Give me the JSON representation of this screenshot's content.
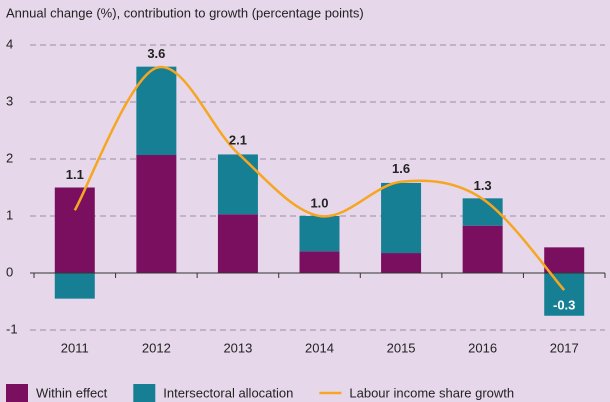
{
  "chart_data": {
    "type": "bar",
    "title": "Annual change (%), contribution to growth (percentage points)",
    "categories": [
      "2011",
      "2012",
      "2013",
      "2014",
      "2015",
      "2016",
      "2017"
    ],
    "stacked": true,
    "series": [
      {
        "name": "Within effect",
        "color": "#7b0f5f",
        "values": [
          1.5,
          2.07,
          1.03,
          0.38,
          0.35,
          0.83,
          0.45
        ]
      },
      {
        "name": "Intersectoral allocation",
        "color": "#177f93",
        "values": [
          -0.45,
          1.55,
          1.05,
          0.62,
          1.23,
          0.48,
          -0.75
        ]
      },
      {
        "name": "Labour income share growth",
        "color": "#f5a623",
        "type": "line",
        "values": [
          1.1,
          3.6,
          2.1,
          1.0,
          1.6,
          1.3,
          -0.3
        ],
        "value_labels": [
          "1.1",
          "3.6",
          "2.1",
          "1.0",
          "1.6",
          "1.3",
          "-0.3"
        ]
      }
    ],
    "ylim": [
      -1.2,
      4.1
    ],
    "yticks": [
      -1,
      0,
      1,
      2,
      3,
      4
    ],
    "grid": true,
    "legend": "bottom"
  }
}
